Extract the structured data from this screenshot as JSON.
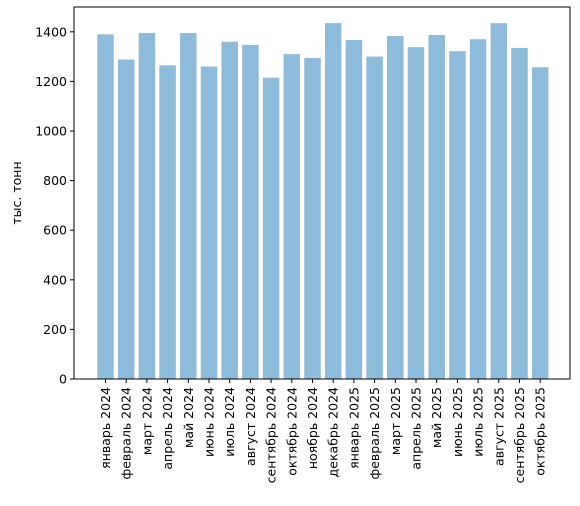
{
  "chart_data": {
    "type": "bar",
    "title": "",
    "xlabel": "",
    "ylabel": "тыс. тонн",
    "ylim": [
      0,
      1500
    ],
    "yticks": [
      0,
      200,
      400,
      600,
      800,
      1000,
      1200,
      1400
    ],
    "grid": false,
    "bar_color": "#8fbbdb",
    "categories": [
      "январь 2024",
      "февраль 2024",
      "март 2024",
      "апрель 2024",
      "май 2024",
      "июнь 2024",
      "июль 2024",
      "август 2024",
      "сентябрь 2024",
      "октябрь 2024",
      "ноябрь 2024",
      "декабрь 2024",
      "январь 2025",
      "февраль 2025",
      "март 2025",
      "апрель 2025",
      "май 2025",
      "июнь 2025",
      "июль 2025",
      "август 2025",
      "сентябрь 2025",
      "октябрь 2025"
    ],
    "values": [
      1390,
      1288,
      1395,
      1265,
      1395,
      1260,
      1360,
      1347,
      1215,
      1310,
      1295,
      1435,
      1367,
      1300,
      1383,
      1338,
      1387,
      1322,
      1370,
      1435,
      1335,
      1257
    ]
  }
}
